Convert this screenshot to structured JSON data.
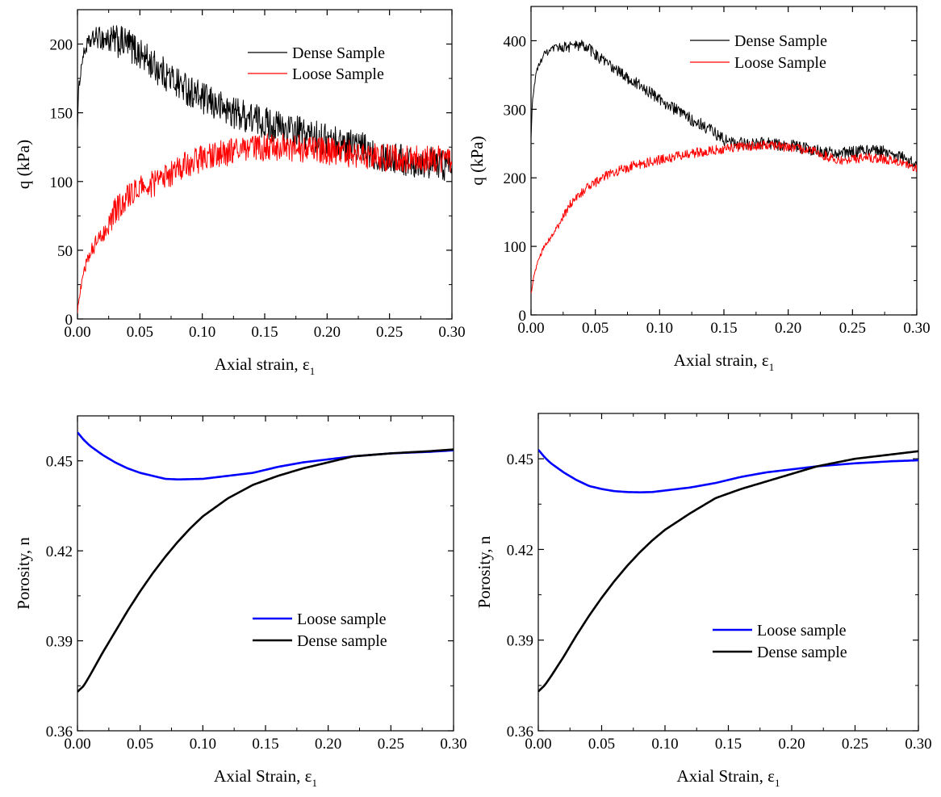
{
  "chart_data": [
    {
      "type": "line",
      "xlabel": "Axial strain, ε",
      "xlabel_sub": "1",
      "ylabel": "q (kPa)",
      "xlim": [
        0,
        0.3
      ],
      "ylim": [
        0,
        225
      ],
      "xticks": [
        "0.00",
        "0.05",
        "0.10",
        "0.15",
        "0.20",
        "0.25",
        "0.30"
      ],
      "xtick_values": [
        0,
        0.05,
        0.1,
        0.15,
        0.2,
        0.25,
        0.3
      ],
      "yticks": [
        "0",
        "50",
        "100",
        "150",
        "200"
      ],
      "ytick_values": [
        0,
        50,
        100,
        150,
        200
      ],
      "grid": false,
      "legend": "top-right",
      "noisy": true,
      "series": [
        {
          "name": "Dense Sample",
          "color": "#000000",
          "noise": 12,
          "x": [
            0,
            0.001,
            0.004,
            0.008,
            0.015,
            0.025,
            0.04,
            0.05,
            0.06,
            0.075,
            0.09,
            0.1,
            0.12,
            0.14,
            0.16,
            0.18,
            0.2,
            0.22,
            0.24,
            0.26,
            0.28,
            0.3
          ],
          "y": [
            140,
            168,
            190,
            200,
            205,
            203,
            200,
            193,
            185,
            175,
            166,
            160,
            152,
            146,
            140,
            135,
            130,
            127,
            120,
            116,
            114,
            112
          ]
        },
        {
          "name": "Loose Sample",
          "color": "#ff0000",
          "noise": 10,
          "x": [
            0,
            0.002,
            0.005,
            0.01,
            0.02,
            0.03,
            0.04,
            0.05,
            0.06,
            0.07,
            0.08,
            0.09,
            0.1,
            0.12,
            0.14,
            0.16,
            0.18,
            0.2,
            0.22,
            0.24,
            0.26,
            0.28,
            0.3
          ],
          "y": [
            5,
            20,
            35,
            48,
            62,
            78,
            88,
            95,
            98,
            103,
            110,
            113,
            117,
            121,
            124,
            125,
            124,
            122,
            120,
            118,
            116,
            116,
            116
          ]
        }
      ]
    },
    {
      "type": "line",
      "xlabel": "Axial strain, ε",
      "xlabel_sub": "1",
      "ylabel": "q (kPa)",
      "xlim": [
        0,
        0.3
      ],
      "ylim": [
        0,
        450
      ],
      "xticks": [
        "0.00",
        "0.05",
        "0.10",
        "0.15",
        "0.20",
        "0.25",
        "0.30"
      ],
      "xtick_values": [
        0,
        0.05,
        0.1,
        0.15,
        0.2,
        0.25,
        0.3
      ],
      "yticks": [
        "0",
        "100",
        "200",
        "300",
        "400"
      ],
      "ytick_values": [
        0,
        100,
        200,
        300,
        400
      ],
      "grid": false,
      "legend": "top-right",
      "noisy": true,
      "series": [
        {
          "name": "Dense Sample",
          "color": "#000000",
          "noise": 9,
          "x": [
            0,
            0.001,
            0.004,
            0.01,
            0.02,
            0.03,
            0.04,
            0.045,
            0.06,
            0.08,
            0.1,
            0.12,
            0.14,
            0.15,
            0.16,
            0.18,
            0.2,
            0.22,
            0.24,
            0.26,
            0.28,
            0.3
          ],
          "y": [
            255,
            310,
            355,
            380,
            390,
            392,
            393,
            388,
            365,
            340,
            315,
            290,
            270,
            255,
            250,
            250,
            248,
            240,
            235,
            240,
            238,
            220
          ]
        },
        {
          "name": "Loose Sample",
          "color": "#ff0000",
          "noise": 7,
          "x": [
            0,
            0.002,
            0.005,
            0.01,
            0.02,
            0.03,
            0.04,
            0.05,
            0.06,
            0.08,
            0.1,
            0.12,
            0.14,
            0.16,
            0.18,
            0.2,
            0.22,
            0.24,
            0.26,
            0.28,
            0.3
          ],
          "y": [
            30,
            55,
            75,
            100,
            125,
            160,
            180,
            193,
            205,
            218,
            226,
            234,
            240,
            245,
            248,
            245,
            238,
            225,
            230,
            226,
            212
          ]
        }
      ]
    },
    {
      "type": "line",
      "xlabel": "Axial Strain, ε",
      "xlabel_sub": "1",
      "ylabel": "Porosity, n",
      "xlim": [
        0,
        0.3
      ],
      "ylim": [
        0.36,
        0.465
      ],
      "xticks": [
        "0.00",
        "0.05",
        "0.10",
        "0.15",
        "0.20",
        "0.25",
        "0.30"
      ],
      "xtick_values": [
        0,
        0.05,
        0.1,
        0.15,
        0.2,
        0.25,
        0.3
      ],
      "yticks": [
        "0.36",
        "0.39",
        "0.42",
        "0.45"
      ],
      "ytick_values": [
        0.36,
        0.39,
        0.42,
        0.45
      ],
      "grid": false,
      "legend": "lower-right",
      "noisy": false,
      "series": [
        {
          "name": "Loose sample",
          "color": "#0000ff",
          "noise": 0,
          "x": [
            0,
            0.005,
            0.01,
            0.02,
            0.03,
            0.04,
            0.05,
            0.06,
            0.07,
            0.08,
            0.09,
            0.1,
            0.12,
            0.14,
            0.16,
            0.18,
            0.2,
            0.22,
            0.25,
            0.28,
            0.3
          ],
          "y": [
            0.4595,
            0.457,
            0.455,
            0.452,
            0.4495,
            0.4475,
            0.446,
            0.445,
            0.444,
            0.4438,
            0.4439,
            0.444,
            0.445,
            0.446,
            0.448,
            0.4495,
            0.4505,
            0.4515,
            0.4525,
            0.453,
            0.4535
          ]
        },
        {
          "name": "Dense sample",
          "color": "#000000",
          "noise": 0,
          "x": [
            0,
            0.005,
            0.01,
            0.02,
            0.03,
            0.04,
            0.05,
            0.06,
            0.07,
            0.08,
            0.09,
            0.1,
            0.12,
            0.14,
            0.16,
            0.18,
            0.2,
            0.22,
            0.25,
            0.28,
            0.3
          ],
          "y": [
            0.373,
            0.375,
            0.3785,
            0.386,
            0.393,
            0.4,
            0.4065,
            0.4125,
            0.418,
            0.423,
            0.4275,
            0.4315,
            0.4375,
            0.442,
            0.445,
            0.4475,
            0.4495,
            0.4515,
            0.4525,
            0.4532,
            0.4538
          ]
        }
      ]
    },
    {
      "type": "line",
      "xlabel": "Axial Strain, ε",
      "xlabel_sub": "1",
      "ylabel": "Porosity, n",
      "xlim": [
        0,
        0.3
      ],
      "ylim": [
        0.36,
        0.465
      ],
      "xticks": [
        "0.00",
        "0.05",
        "0.10",
        "0.15",
        "0.20",
        "0.25",
        "0.30"
      ],
      "xtick_values": [
        0,
        0.05,
        0.1,
        0.15,
        0.2,
        0.25,
        0.3
      ],
      "yticks": [
        "0.36",
        "0.39",
        "0.42",
        "0.45"
      ],
      "ytick_values": [
        0.36,
        0.39,
        0.42,
        0.45
      ],
      "grid": false,
      "legend": "lower-right",
      "noisy": false,
      "series": [
        {
          "name": "Loose sample",
          "color": "#0000ff",
          "noise": 0,
          "x": [
            0,
            0.005,
            0.01,
            0.02,
            0.03,
            0.04,
            0.05,
            0.06,
            0.07,
            0.08,
            0.09,
            0.1,
            0.12,
            0.14,
            0.16,
            0.18,
            0.2,
            0.22,
            0.25,
            0.28,
            0.3
          ],
          "y": [
            0.453,
            0.4505,
            0.4485,
            0.4455,
            0.443,
            0.441,
            0.44,
            0.4393,
            0.439,
            0.4389,
            0.439,
            0.4395,
            0.4405,
            0.442,
            0.444,
            0.4455,
            0.4465,
            0.4475,
            0.4485,
            0.4492,
            0.4495
          ]
        },
        {
          "name": "Dense sample",
          "color": "#000000",
          "noise": 0,
          "x": [
            0,
            0.005,
            0.01,
            0.02,
            0.03,
            0.04,
            0.05,
            0.06,
            0.07,
            0.08,
            0.09,
            0.1,
            0.12,
            0.14,
            0.16,
            0.18,
            0.2,
            0.22,
            0.25,
            0.28,
            0.3
          ],
          "y": [
            0.373,
            0.375,
            0.378,
            0.3845,
            0.3915,
            0.398,
            0.404,
            0.4095,
            0.4145,
            0.419,
            0.423,
            0.4265,
            0.432,
            0.437,
            0.44,
            0.4425,
            0.445,
            0.4475,
            0.45,
            0.4515,
            0.4525
          ]
        }
      ]
    }
  ]
}
